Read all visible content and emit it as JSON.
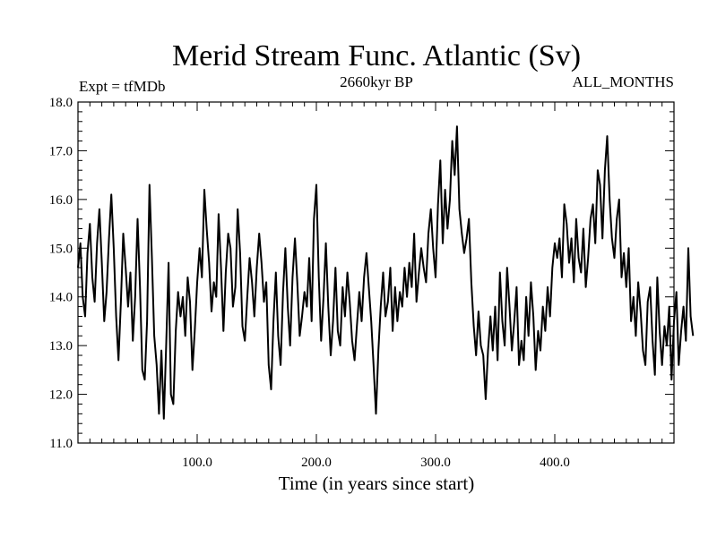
{
  "chart_data": {
    "type": "line",
    "title": "Merid Stream Func. Atlantic (Sv)",
    "subtitle_left": "Expt = tfMDb",
    "subtitle_center": "2660kyr BP",
    "subtitle_right": "ALL_MONTHS",
    "xlabel": "Time (in years since start)",
    "ylabel": "",
    "xlim": [
      0,
      500
    ],
    "ylim": [
      11.0,
      18.0
    ],
    "x_ticks": [
      100,
      200,
      300,
      400
    ],
    "x_tick_labels": [
      "100.0",
      "200.0",
      "300.0",
      "400.0"
    ],
    "y_ticks": [
      11,
      12,
      13,
      14,
      15,
      16,
      17,
      18
    ],
    "y_tick_labels": [
      "11.0",
      "12.0",
      "13.0",
      "14.0",
      "15.0",
      "16.0",
      "17.0",
      "18.0"
    ],
    "grid": false,
    "series": [
      {
        "name": "Merid Stream Func. Atlantic",
        "x_start": 0,
        "x_step": 2,
        "values": [
          14.6,
          15.1,
          14.0,
          13.6,
          14.9,
          15.5,
          14.4,
          13.9,
          15.1,
          15.8,
          14.7,
          13.5,
          14.1,
          15.2,
          16.1,
          15.0,
          13.6,
          12.7,
          13.9,
          15.3,
          14.6,
          13.8,
          14.5,
          13.1,
          14.0,
          15.6,
          14.2,
          12.5,
          12.3,
          13.5,
          16.3,
          14.8,
          13.2,
          12.6,
          11.6,
          12.9,
          11.5,
          13.0,
          14.7,
          12.0,
          11.8,
          13.3,
          14.1,
          13.6,
          14.0,
          13.2,
          14.4,
          13.9,
          12.5,
          13.3,
          14.3,
          15.0,
          14.4,
          16.2,
          15.4,
          14.7,
          13.7,
          14.3,
          14.0,
          15.7,
          14.6,
          13.3,
          14.5,
          15.3,
          15.0,
          13.8,
          14.2,
          15.8,
          14.9,
          13.4,
          13.1,
          14.0,
          14.8,
          14.3,
          13.6,
          14.6,
          15.3,
          14.7,
          13.9,
          14.3,
          12.6,
          12.1,
          13.5,
          14.5,
          13.2,
          12.6,
          14.1,
          15.0,
          13.8,
          13.0,
          14.4,
          15.2,
          14.3,
          13.2,
          13.6,
          14.1,
          13.8,
          14.8,
          13.5,
          15.6,
          16.3,
          14.4,
          13.1,
          14.0,
          15.1,
          13.8,
          12.8,
          13.5,
          14.6,
          13.3,
          13.0,
          14.2,
          13.6,
          14.5,
          13.9,
          13.1,
          12.7,
          13.4,
          14.1,
          13.5,
          14.4,
          14.9,
          14.2,
          13.5,
          12.6,
          11.6,
          12.9,
          13.8,
          14.5,
          13.6,
          13.9,
          14.6,
          13.3,
          14.2,
          13.5,
          14.1,
          13.8,
          14.6,
          14.0,
          14.7,
          14.2,
          15.3,
          13.9,
          14.5,
          15.0,
          14.6,
          14.3,
          15.3,
          15.8,
          15.0,
          14.4,
          15.9,
          16.8,
          15.1,
          16.2,
          15.4,
          16.0,
          17.2,
          16.5,
          17.5,
          15.8,
          15.3,
          14.9,
          15.2,
          15.6,
          14.3,
          13.4,
          12.8,
          13.7,
          13.0,
          12.8,
          11.9,
          12.9,
          13.6,
          12.9,
          13.8,
          12.7,
          14.5,
          13.5,
          13.0,
          14.6,
          13.8,
          12.9,
          13.5,
          14.2,
          12.6,
          13.1,
          12.7,
          14.0,
          13.2,
          14.3,
          13.6,
          12.5,
          13.3,
          12.9,
          13.8,
          13.3,
          14.2,
          13.6,
          14.6,
          15.1,
          14.8,
          15.2,
          14.4,
          15.9,
          15.5,
          14.7,
          15.2,
          14.3,
          15.6,
          14.8,
          14.5,
          15.4,
          14.2,
          14.8,
          15.6,
          15.9,
          15.1,
          16.6,
          16.3,
          15.2,
          16.6,
          17.3,
          16.0,
          15.2,
          14.8,
          15.6,
          16.0,
          14.4,
          14.9,
          14.2,
          15.0,
          13.5,
          14.0,
          13.2,
          14.3,
          13.7,
          12.9,
          12.6,
          13.9,
          14.2,
          13.1,
          12.4,
          14.4,
          13.3,
          12.6,
          13.4,
          13.0,
          13.8,
          12.3,
          13.5,
          14.1,
          12.6,
          13.3,
          13.8,
          13.1,
          15.0,
          13.6,
          13.2
        ]
      }
    ]
  }
}
